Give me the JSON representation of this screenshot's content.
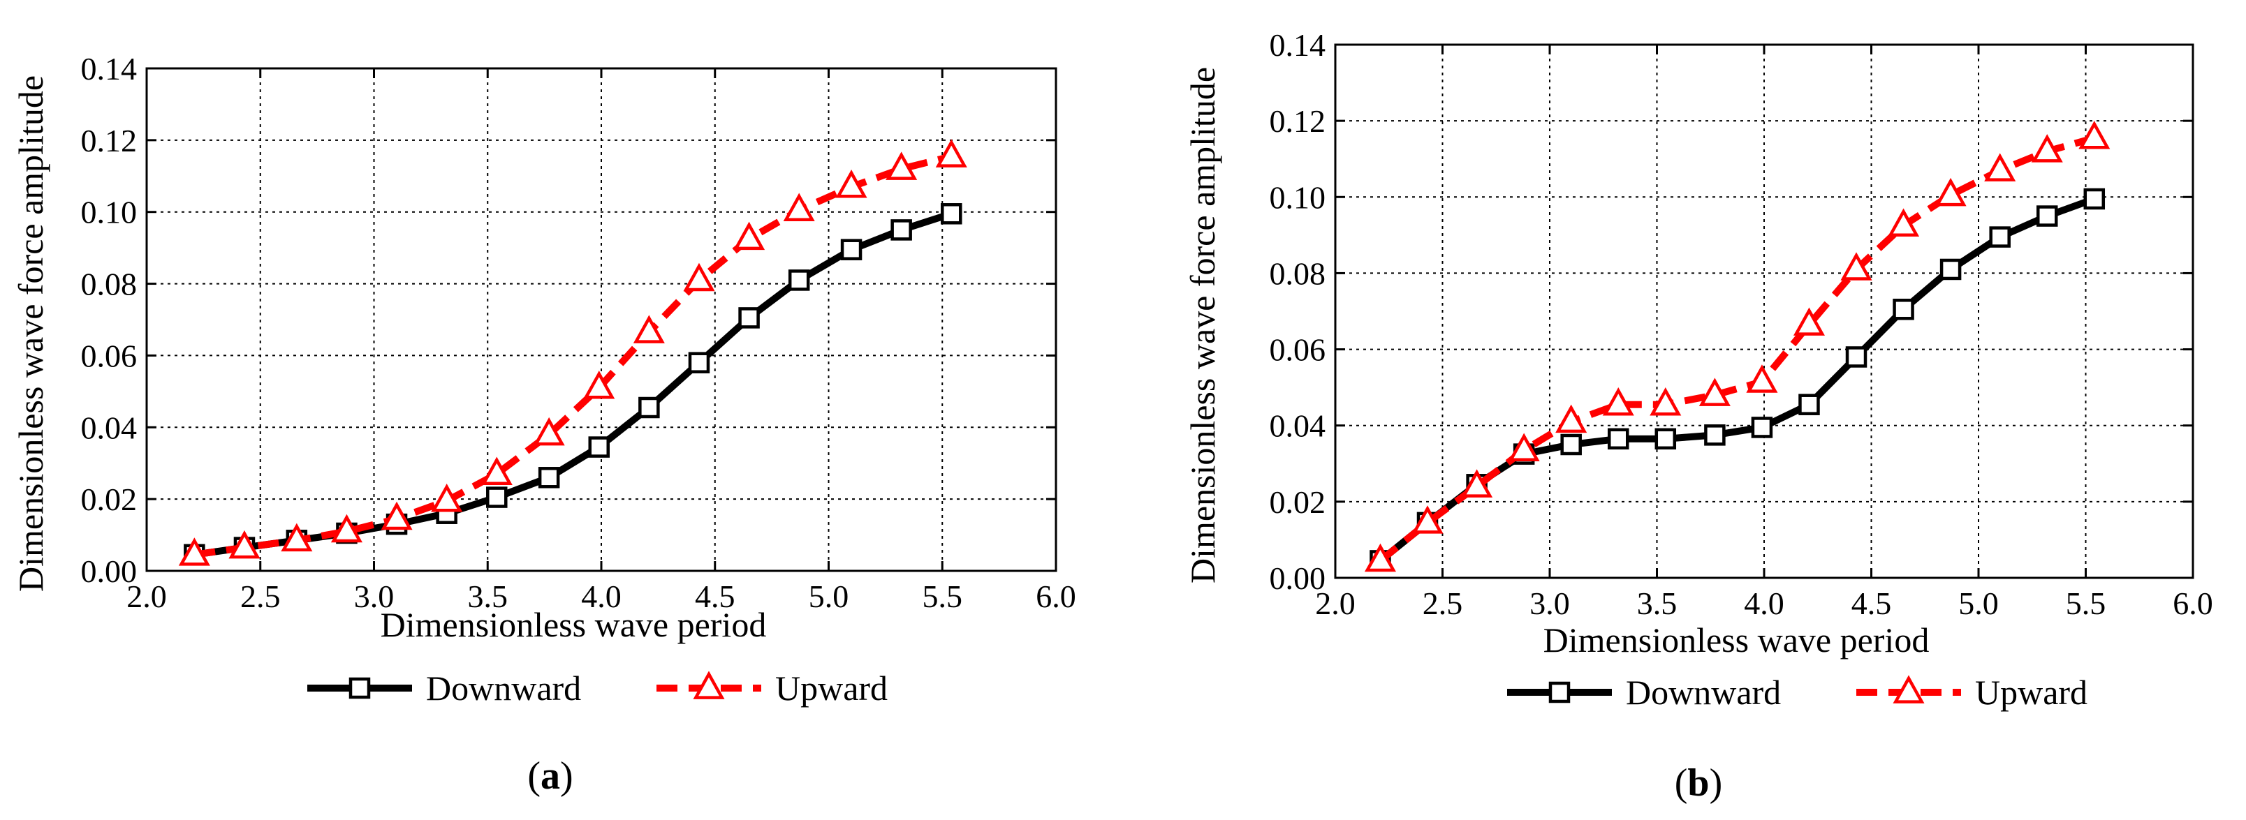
{
  "colors": {
    "downward": "#000000",
    "upward": "#ff0000",
    "grid": "#000000",
    "background": "#ffffff"
  },
  "chart_data": [
    {
      "type": "line",
      "panel_label": "a",
      "xlabel": "Dimensionless wave period",
      "ylabel": "Dimensionless wave force amplitude",
      "xlim": [
        2.0,
        6.0
      ],
      "ylim": [
        0.0,
        0.14
      ],
      "xticks": [
        2.0,
        2.5,
        3.0,
        3.5,
        4.0,
        4.5,
        5.0,
        5.5,
        6.0
      ],
      "xtick_labels": [
        "2.0",
        "2.5",
        "3.0",
        "3.5",
        "4.0",
        "4.5",
        "5.0",
        "5.5",
        "6.0"
      ],
      "yticks": [
        0.0,
        0.02,
        0.04,
        0.06,
        0.08,
        0.1,
        0.12,
        0.14
      ],
      "ytick_labels": [
        "0.00",
        "0.02",
        "0.04",
        "0.06",
        "0.08",
        "0.10",
        "0.12",
        "0.14"
      ],
      "grid": true,
      "legend_position": "bottom-center",
      "series": [
        {
          "name": "Downward",
          "line_style": "solid",
          "marker": "square",
          "x": [
            2.21,
            2.43,
            2.66,
            2.88,
            3.1,
            3.32,
            3.54,
            3.77,
            3.99,
            4.21,
            4.43,
            4.65,
            4.87,
            5.1,
            5.32,
            5.54
          ],
          "y": [
            0.0045,
            0.0065,
            0.0085,
            0.0105,
            0.013,
            0.016,
            0.0205,
            0.026,
            0.0345,
            0.0455,
            0.058,
            0.0705,
            0.081,
            0.0895,
            0.095,
            0.0995
          ]
        },
        {
          "name": "Upward",
          "line_style": "dashed",
          "marker": "triangle",
          "x": [
            2.21,
            2.43,
            2.66,
            2.88,
            3.1,
            3.32,
            3.54,
            3.77,
            3.99,
            4.21,
            4.43,
            4.65,
            4.87,
            5.1,
            5.32,
            5.54
          ],
          "y": [
            0.0045,
            0.0065,
            0.0085,
            0.011,
            0.0145,
            0.0195,
            0.027,
            0.038,
            0.051,
            0.0665,
            0.081,
            0.0925,
            0.1005,
            0.107,
            0.112,
            0.1155
          ]
        }
      ]
    },
    {
      "type": "line",
      "panel_label": "b",
      "xlabel": "Dimensionless wave period",
      "ylabel": "Dimensionless wave force amplitude",
      "xlim": [
        2.0,
        6.0
      ],
      "ylim": [
        0.0,
        0.14
      ],
      "xticks": [
        2.0,
        2.5,
        3.0,
        3.5,
        4.0,
        4.5,
        5.0,
        5.5,
        6.0
      ],
      "xtick_labels": [
        "2.0",
        "2.5",
        "3.0",
        "3.5",
        "4.0",
        "4.5",
        "5.0",
        "5.5",
        "6.0"
      ],
      "yticks": [
        0.0,
        0.02,
        0.04,
        0.06,
        0.08,
        0.1,
        0.12,
        0.14
      ],
      "ytick_labels": [
        "0.00",
        "0.02",
        "0.04",
        "0.06",
        "0.08",
        "0.10",
        "0.12",
        "0.14"
      ],
      "grid": true,
      "legend_position": "bottom-center",
      "series": [
        {
          "name": "Downward",
          "line_style": "solid",
          "marker": "square",
          "x": [
            2.21,
            2.43,
            2.66,
            2.88,
            3.1,
            3.32,
            3.54,
            3.77,
            3.99,
            4.21,
            4.43,
            4.65,
            4.87,
            5.1,
            5.32,
            5.54
          ],
          "y": [
            0.0045,
            0.0145,
            0.0245,
            0.0325,
            0.035,
            0.0365,
            0.0365,
            0.0375,
            0.0395,
            0.0455,
            0.058,
            0.0705,
            0.081,
            0.0895,
            0.095,
            0.0995
          ]
        },
        {
          "name": "Upward",
          "line_style": "dashed",
          "marker": "triangle",
          "x": [
            2.21,
            2.43,
            2.66,
            2.88,
            3.1,
            3.32,
            3.54,
            3.77,
            3.99,
            4.21,
            4.43,
            4.65,
            4.87,
            5.1,
            5.32,
            5.54
          ],
          "y": [
            0.0045,
            0.0145,
            0.024,
            0.0335,
            0.041,
            0.0455,
            0.0455,
            0.048,
            0.0515,
            0.0665,
            0.081,
            0.0925,
            0.1005,
            0.107,
            0.112,
            0.1155
          ]
        }
      ]
    }
  ]
}
